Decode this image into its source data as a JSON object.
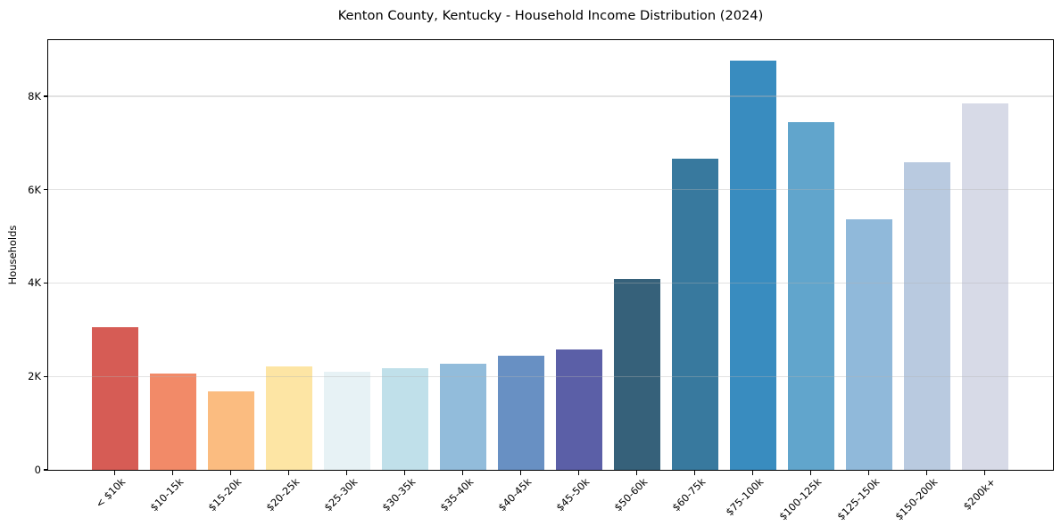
{
  "chart_data": {
    "type": "bar",
    "title": "Kenton County, Kentucky - Household Income Distribution (2024)",
    "xlabel": "",
    "ylabel": "Households",
    "categories": [
      "< $10k",
      "$10-15k",
      "$15-20k",
      "$20-25k",
      "$25-30k",
      "$30-35k",
      "$35-40k",
      "$40-45k",
      "$45-50k",
      "$50-60k",
      "$60-75k",
      "$75-100k",
      "$100-125k",
      "$125-150k",
      "$150-200k",
      "$200k+"
    ],
    "values": [
      3050,
      2060,
      1680,
      2210,
      2100,
      2180,
      2270,
      2440,
      2580,
      4090,
      6660,
      8760,
      7440,
      5360,
      6590,
      7850
    ],
    "bar_colors": [
      "#d65c55",
      "#f28a68",
      "#fbbc80",
      "#fde5a4",
      "#e7f2f5",
      "#c0e0ea",
      "#92bcdb",
      "#6890c3",
      "#5b5fa7",
      "#36617a",
      "#38799e",
      "#398cbf",
      "#61a5cc",
      "#90b9da",
      "#b9cae0",
      "#d7dae7"
    ],
    "ylim": [
      0,
      9200
    ],
    "yticks": [
      {
        "value": 0,
        "label": "0"
      },
      {
        "value": 2000,
        "label": "2K"
      },
      {
        "value": 4000,
        "label": "4K"
      },
      {
        "value": 6000,
        "label": "6K"
      },
      {
        "value": 8000,
        "label": "8K"
      }
    ],
    "grid": "horizontal",
    "legend": "none"
  },
  "colors": {
    "background": "#ffffff",
    "spine": "#000000",
    "gridline": "rgba(180,180,180,0.38)",
    "text": "#000000"
  }
}
